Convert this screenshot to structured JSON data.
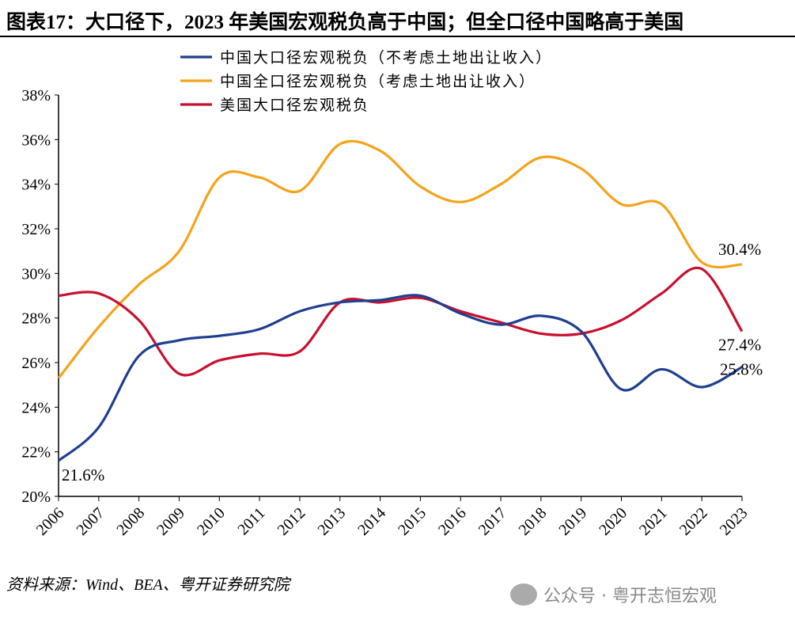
{
  "title": "图表17：大口径下，2023 年美国宏观税负高于中国；但全口径中国略高于美国",
  "source": "资料来源：Wind、BEA、粤开证券研究院",
  "watermark": "公众号 · 粤开志恒宏观",
  "chart_data": {
    "type": "line",
    "title": "图表17：大口径下，2023 年美国宏观税负高于中国；但全口径中国略高于美国",
    "xlabel": "",
    "ylabel": "",
    "ylim": [
      20,
      38
    ],
    "y_ticks": [
      "20%",
      "22%",
      "24%",
      "26%",
      "28%",
      "30%",
      "32%",
      "34%",
      "36%",
      "38%"
    ],
    "grid": false,
    "legend_position": "top",
    "categories": [
      "2006",
      "2007",
      "2008",
      "2009",
      "2010",
      "2011",
      "2012",
      "2013",
      "2014",
      "2015",
      "2016",
      "2017",
      "2018",
      "2019",
      "2020",
      "2021",
      "2022",
      "2023"
    ],
    "series": [
      {
        "name": "中国大口径宏观税负（不考虑土地出让收入）",
        "color": "#1f3f8f",
        "values": [
          21.6,
          23.1,
          26.3,
          27.0,
          27.2,
          27.5,
          28.3,
          28.7,
          28.8,
          29.0,
          28.2,
          27.7,
          28.1,
          27.4,
          24.8,
          25.7,
          24.9,
          25.8
        ]
      },
      {
        "name": "中国全口径宏观税负（考虑土地出让收入）",
        "color": "#f5a31a",
        "values": [
          25.3,
          27.6,
          29.5,
          31.0,
          34.3,
          34.3,
          33.7,
          35.8,
          35.5,
          33.9,
          33.2,
          34.0,
          35.2,
          34.7,
          33.1,
          33.1,
          30.5,
          30.4
        ]
      },
      {
        "name": "美国大口径宏观税负",
        "color": "#c8102e",
        "values": [
          29.0,
          29.1,
          27.9,
          25.5,
          26.1,
          26.4,
          26.5,
          28.7,
          28.7,
          28.9,
          28.3,
          27.8,
          27.3,
          27.3,
          27.9,
          29.1,
          30.2,
          27.4
        ]
      }
    ],
    "annotations": [
      {
        "text": "21.6%",
        "series": 0,
        "x": "2006"
      },
      {
        "text": "25.8%",
        "series": 0,
        "x": "2023"
      },
      {
        "text": "30.4%",
        "series": 1,
        "x": "2023"
      },
      {
        "text": "27.4%",
        "series": 2,
        "x": "2023"
      }
    ]
  }
}
